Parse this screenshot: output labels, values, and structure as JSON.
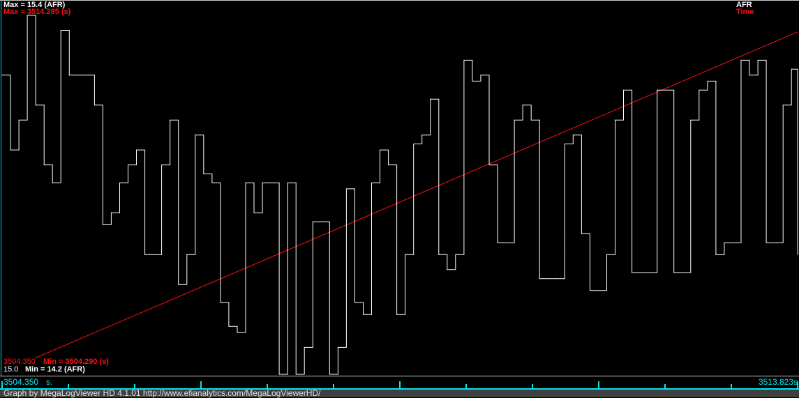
{
  "chart_data": {
    "type": "line",
    "xlabel": "s.",
    "x_range": [
      3504.35,
      3513.823
    ],
    "grid": false,
    "legend_placement": "top-right",
    "series": [
      {
        "name": "AFR",
        "color": "#ffffff",
        "max_label": "Max = 15.4 (AFR)",
        "min_label": "Min = 14.2 (AFR)",
        "min_value_label": "15.0",
        "ylim": [
          14.2,
          15.4
        ],
        "time": [
          3504.35,
          3504.45,
          3504.55,
          3504.65,
          3504.75,
          3504.85,
          3504.95,
          3505.05,
          3505.15,
          3505.25,
          3505.35,
          3505.45,
          3505.55,
          3505.65,
          3505.75,
          3505.85,
          3505.95,
          3506.05,
          3506.15,
          3506.25,
          3506.35,
          3506.45,
          3506.55,
          3506.65,
          3506.75,
          3506.85,
          3506.95,
          3507.05,
          3507.15,
          3507.25,
          3507.35,
          3507.45,
          3507.55,
          3507.65,
          3507.75,
          3507.85,
          3507.95,
          3508.05,
          3508.15,
          3508.25,
          3508.35,
          3508.45,
          3508.55,
          3508.65,
          3508.75,
          3508.85,
          3508.95,
          3509.05,
          3509.15,
          3509.25,
          3509.35,
          3509.45,
          3509.55,
          3509.65,
          3509.75,
          3509.85,
          3509.95,
          3510.05,
          3510.15,
          3510.25,
          3510.35,
          3510.45,
          3510.55,
          3510.65,
          3510.75,
          3510.85,
          3510.95,
          3511.05,
          3511.15,
          3511.25,
          3511.35,
          3511.45,
          3511.55,
          3511.65,
          3511.75,
          3511.85,
          3511.95,
          3512.05,
          3512.15,
          3512.25,
          3512.35,
          3512.45,
          3512.55,
          3512.65,
          3512.75,
          3512.85,
          3512.95,
          3513.05,
          3513.15,
          3513.25,
          3513.35,
          3513.45,
          3513.55,
          3513.65,
          3513.75,
          3513.823
        ],
        "values": [
          15.2,
          14.95,
          15.05,
          15.4,
          15.1,
          14.9,
          14.84,
          15.35,
          15.2,
          15.2,
          15.2,
          15.1,
          14.7,
          14.74,
          14.84,
          14.9,
          14.95,
          14.6,
          14.6,
          14.9,
          15.05,
          14.5,
          14.6,
          15.0,
          14.87,
          14.84,
          14.44,
          14.36,
          14.34,
          14.84,
          14.74,
          14.84,
          14.84,
          14.2,
          14.84,
          14.2,
          14.29,
          14.71,
          14.71,
          14.2,
          14.29,
          14.82,
          14.44,
          14.4,
          14.84,
          14.95,
          14.9,
          14.4,
          14.6,
          14.97,
          15.0,
          15.12,
          14.6,
          14.55,
          14.6,
          15.25,
          15.18,
          15.2,
          14.9,
          14.64,
          14.64,
          15.05,
          15.1,
          15.05,
          14.52,
          14.52,
          14.52,
          14.97,
          15.0,
          14.67,
          14.48,
          14.48,
          14.6,
          15.05,
          15.15,
          14.54,
          14.54,
          14.54,
          15.15,
          15.15,
          14.54,
          14.54,
          15.05,
          15.15,
          15.18,
          14.6,
          14.64,
          14.64,
          15.25,
          15.2,
          15.25,
          14.64,
          14.64,
          15.1,
          15.22,
          14.6
        ]
      },
      {
        "name": "Time",
        "color": "#ff1010",
        "max_label": "Max = 3514.285 (s)",
        "min_label": "Min = 3504.290 (s)",
        "min_value_label": "3504.350",
        "ylim": [
          3504.29,
          3514.285
        ]
      }
    ],
    "x_tick_labels": {
      "start": "3504.350",
      "end": "3513.823s"
    }
  },
  "footer": "Graph by MegaLogViewer HD 4.1.01 http://www.efianalytics.com/MegaLogViewerHD/"
}
